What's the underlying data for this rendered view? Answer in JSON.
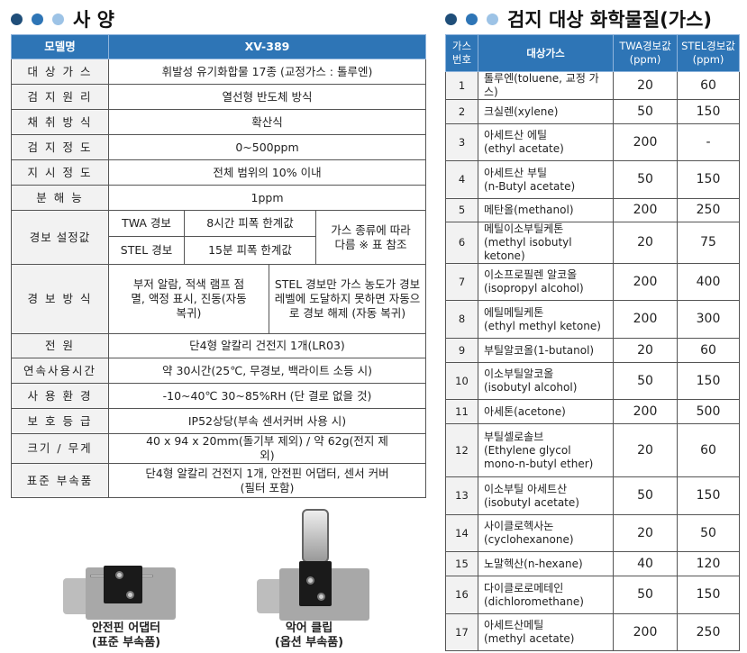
{
  "spec": {
    "title": "사 양",
    "header": {
      "label": "모델명",
      "value": "XV-389"
    },
    "rows": [
      {
        "label": "대 상 가 스",
        "value": "휘발성 유기화합물 17종 (교정가스 : 톨루엔)"
      },
      {
        "label": "검 지 원 리",
        "value": "열선형 반도체 방식"
      },
      {
        "label": "채 취 방 식",
        "value": "확산식"
      },
      {
        "label": "검 지 정 도",
        "value": "0~500ppm"
      },
      {
        "label": "지 시 정 도",
        "value": "전체 범위의 10% 이내"
      },
      {
        "label": "분   해   능",
        "value": "1ppm"
      }
    ],
    "alarm_setting": {
      "label": "경보 설정값",
      "twa_label": "TWA 경보",
      "twa_value": "8시간 피폭 한계값",
      "stel_label": "STEL 경보",
      "stel_value": "15분 피폭 한계값",
      "note": "가스 종류에 따라 다름 ※ 표 참조"
    },
    "alarm_method": {
      "label": "경 보 방 식",
      "value1": "부저 알람, 적색 램프 점멸, 액정 표시, 진동(자동 복귀)",
      "value2": "STEL 경보만 가스 농도가 경보 레벨에 도달하지 못하면 자동으로 경보 해제 (자동 복귀)"
    },
    "rows2": [
      {
        "label": "전     원",
        "value": "단4형 알칼리 건전지 1개(LR03)"
      },
      {
        "label": "연속사용시간",
        "value": "약 30시간(25℃, 무경보, 백라이트 소등 시)"
      },
      {
        "label": "사 용 환 경",
        "value": "-10~40℃ 30~85%RH (단 결로 없을 것)"
      },
      {
        "label": "보 호 등 급",
        "value": "IP52상당(부속 센서커버 사용 시)"
      },
      {
        "label": "크기 / 무게",
        "value": "40 x 94 x 20mm(돌기부 제외) / 약 62g(전지 제외)"
      },
      {
        "label": "표준 부속품",
        "value": "단4형 알칼리 건전지 1개, 안전핀 어댑터, 센서 커버(필터 포함)"
      }
    ]
  },
  "accessories": [
    {
      "name": "안전핀 어댑터",
      "sub": "(표준 부속품)"
    },
    {
      "name": "악어 클립",
      "sub": "(옵션 부속품)"
    }
  ],
  "gas": {
    "title": "검지 대상 화학물질(가스)",
    "headers": [
      "가스 번호",
      "대상가스",
      "TWA경보값 (ppm)",
      "STEL경보값 (ppm)"
    ],
    "rows": [
      {
        "no": "1",
        "ko": "톨루엔(toluene, 교정 가스)",
        "en": "",
        "twa": "20",
        "stel": "60"
      },
      {
        "no": "2",
        "ko": "크실렌(xylene)",
        "en": "",
        "twa": "50",
        "stel": "150"
      },
      {
        "no": "3",
        "ko": "아세트산 에틸",
        "en": "(ethyl acetate)",
        "twa": "200",
        "stel": "-"
      },
      {
        "no": "4",
        "ko": "아세트산 부틸",
        "en": "(n-Butyl acetate)",
        "twa": "50",
        "stel": "150"
      },
      {
        "no": "5",
        "ko": "메탄올(methanol)",
        "en": "",
        "twa": "200",
        "stel": "250"
      },
      {
        "no": "6",
        "ko": "메틸이소부틸케톤",
        "en": "(methyl isobutyl ketone)",
        "twa": "20",
        "stel": "75"
      },
      {
        "no": "7",
        "ko": "이소프로필렌 알코올",
        "en": "(isopropyl alcohol)",
        "twa": "200",
        "stel": "400"
      },
      {
        "no": "8",
        "ko": "에틸메틸케톤",
        "en": "(ethyl methyl ketone)",
        "twa": "200",
        "stel": "300"
      },
      {
        "no": "9",
        "ko": "부틸알코올(1-butanol)",
        "en": "",
        "twa": "20",
        "stel": "60"
      },
      {
        "no": "10",
        "ko": "이소부틸알코올",
        "en": "(isobutyl alcohol)",
        "twa": "50",
        "stel": "150"
      },
      {
        "no": "11",
        "ko": "아세톤(acetone)",
        "en": "",
        "twa": "200",
        "stel": "500"
      },
      {
        "no": "12",
        "ko": "부틸셀로솔브",
        "en": "(Ethylene glycol mono-n-butyl ether)",
        "twa": "20",
        "stel": "60"
      },
      {
        "no": "13",
        "ko": "이소부틸 아세트산",
        "en": "(isobutyl acetate)",
        "twa": "50",
        "stel": "150"
      },
      {
        "no": "14",
        "ko": "사이클로헥사논",
        "en": "(cyclohexanone)",
        "twa": "20",
        "stel": "50"
      },
      {
        "no": "15",
        "ko": "노말헥산(n-hexane)",
        "en": "",
        "twa": "40",
        "stel": "120"
      },
      {
        "no": "16",
        "ko": "다이클로로메테인",
        "en": "(dichloromethane)",
        "twa": "50",
        "stel": "150"
      },
      {
        "no": "17",
        "ko": "아세트산메틸",
        "en": "(methyl acetate)",
        "twa": "200",
        "stel": "250"
      }
    ]
  },
  "colors": {
    "header": "#2e75b6",
    "dot1": "#1f4e79",
    "dot2": "#2e75b6",
    "dot3": "#9dc3e6",
    "label_bg": "#f2f2f2"
  }
}
